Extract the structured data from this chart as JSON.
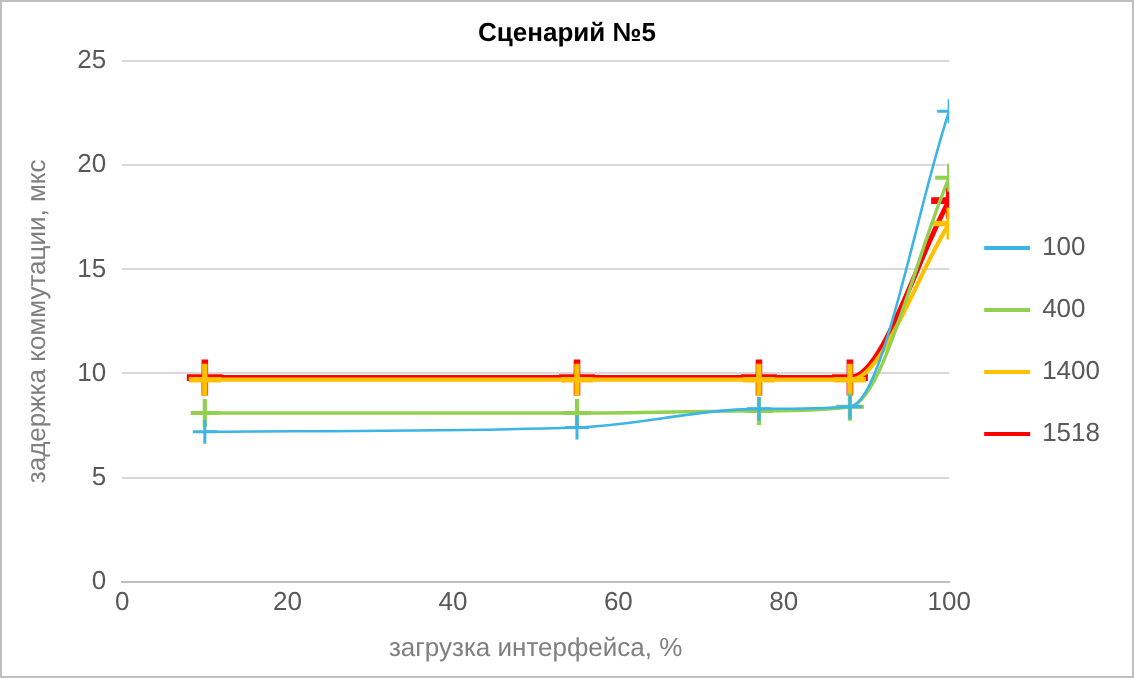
{
  "chart_data": {
    "type": "line",
    "title": "Сценарий №5",
    "xlabel": "загрузка интерфейса, %",
    "ylabel": "задержка коммутации, мкс",
    "x": [
      10,
      55,
      77,
      88,
      100
    ],
    "series": [
      {
        "name": "100",
        "color": "#3cb4e5",
        "values": [
          7.2,
          7.4,
          8.3,
          8.4,
          22.6
        ]
      },
      {
        "name": "400",
        "color": "#92d050",
        "values": [
          8.1,
          8.1,
          8.2,
          8.4,
          19.4
        ]
      },
      {
        "name": "1400",
        "color": "#ffc000",
        "values": [
          9.7,
          9.7,
          9.7,
          9.7,
          17.2
        ]
      },
      {
        "name": "1518",
        "color": "#ff0000",
        "values": [
          9.8,
          9.8,
          9.8,
          9.8,
          18.3
        ]
      }
    ],
    "xlim": [
      0,
      100
    ],
    "xticks": [
      0,
      20,
      40,
      60,
      80,
      100
    ],
    "ylim": [
      0,
      25
    ],
    "yticks": [
      0,
      5,
      10,
      15,
      20,
      25
    ],
    "grid": "y",
    "legend": "right",
    "marker": "cross",
    "line_style": "solid"
  }
}
